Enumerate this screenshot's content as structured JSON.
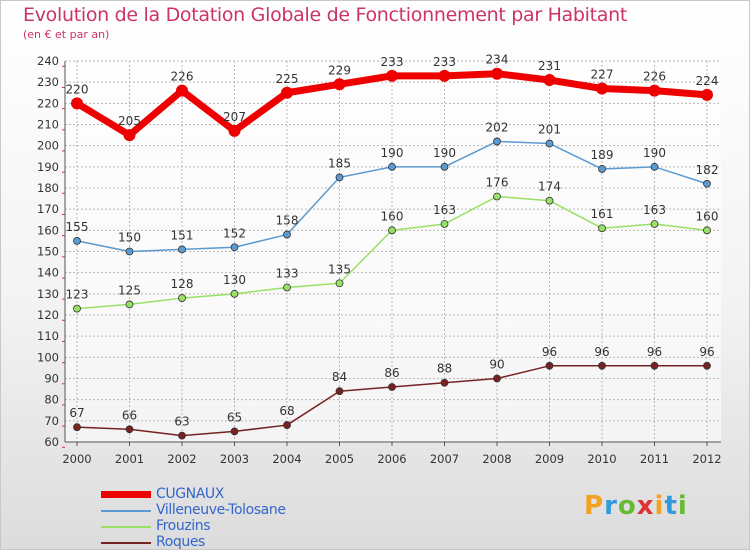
{
  "title": "Evolution de la Dotation Globale de Fonctionnement par Habitant",
  "subtitle": "(en € et par an)",
  "logo": {
    "text": "Proxiti",
    "letters": [
      {
        "ch": "P",
        "color": "#f4a020"
      },
      {
        "ch": "r",
        "color": "#3399dd"
      },
      {
        "ch": "o",
        "color": "#66bb33"
      },
      {
        "ch": "x",
        "color": "#dd3333"
      },
      {
        "ch": "i",
        "color": "#f4a020"
      },
      {
        "ch": "t",
        "color": "#3399dd"
      },
      {
        "ch": "i",
        "color": "#66bb33"
      }
    ]
  },
  "chart_data": {
    "type": "line",
    "categories": [
      "2000",
      "2001",
      "2002",
      "2003",
      "2004",
      "2005",
      "2006",
      "2007",
      "2008",
      "2009",
      "2010",
      "2011",
      "2012"
    ],
    "ylim": [
      60,
      240
    ],
    "ytick_step": 10,
    "yticks": [
      "60",
      "70",
      "80",
      "90",
      "100",
      "110",
      "120",
      "130",
      "140",
      "150",
      "160",
      "170",
      "180",
      "190",
      "200",
      "210",
      "220",
      "230",
      "240"
    ],
    "grid": true,
    "legend_position": "bottom-left",
    "series": [
      {
        "name": "CUGNAUX",
        "color": "#ee0000",
        "emphasis": true,
        "values": [
          220,
          205,
          226,
          207,
          225,
          229,
          233,
          233,
          234,
          231,
          227,
          226,
          224
        ]
      },
      {
        "name": "Villeneuve-Tolosane",
        "color": "#5b9bd1",
        "values": [
          155,
          150,
          151,
          152,
          158,
          185,
          190,
          190,
          202,
          201,
          189,
          190,
          182
        ]
      },
      {
        "name": "Frouzins",
        "color": "#99e066",
        "values": [
          123,
          125,
          128,
          130,
          133,
          135,
          160,
          163,
          176,
          174,
          161,
          163,
          160
        ]
      },
      {
        "name": "Roques",
        "color": "#772222",
        "values": [
          67,
          66,
          63,
          65,
          68,
          84,
          86,
          88,
          90,
          96,
          96,
          96,
          96
        ]
      }
    ]
  }
}
